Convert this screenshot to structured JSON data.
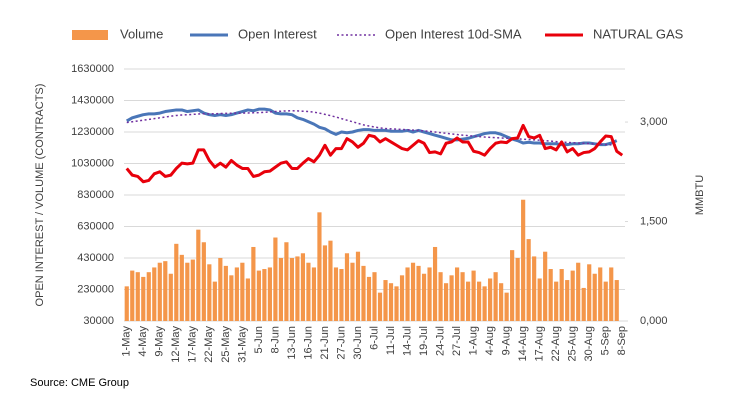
{
  "chart_data": {
    "type": "combo",
    "ylabel": "OPEN INTEREST / VOLUME (CONTRACTS)",
    "y2label": "MMBTU",
    "source": "Source: CME Group",
    "grid": true,
    "legend": "top",
    "ylim": [
      30000,
      1630000
    ],
    "yticks": [
      30000,
      230000,
      430000,
      630000,
      830000,
      1030000,
      1230000,
      1430000,
      1630000
    ],
    "y2lim": [
      0,
      3800
    ],
    "y2ticks": [
      {
        "value": 0,
        "label": "0,000"
      },
      {
        "value": 1500,
        "label": "1,500"
      },
      {
        "value": 3000,
        "label": "3,000"
      }
    ],
    "categories": [
      "1-May",
      null,
      null,
      "4-May",
      null,
      null,
      "9-May",
      null,
      null,
      "12-May",
      null,
      null,
      "17-May",
      null,
      null,
      "22-May",
      null,
      null,
      "25-May",
      null,
      null,
      "31-May",
      null,
      null,
      "5-Jun",
      null,
      null,
      "8-Jun",
      null,
      null,
      "13-Jun",
      null,
      null,
      "16-Jun",
      null,
      null,
      "21-Jun",
      null,
      null,
      "27-Jun",
      null,
      null,
      "30-Jun",
      null,
      null,
      "6-Jul",
      null,
      null,
      "11-Jul",
      null,
      null,
      "14-Jul",
      null,
      null,
      "19-Jul",
      null,
      null,
      "24-Jul",
      null,
      null,
      "27-Jul",
      null,
      null,
      "1-Aug",
      null,
      null,
      "4-Aug",
      null,
      null,
      "9-Aug",
      null,
      null,
      "14-Aug",
      null,
      null,
      "17-Aug",
      null,
      null,
      "22-Aug",
      null,
      null,
      "25-Aug",
      null,
      null,
      "30-Aug",
      null,
      null,
      "5-Sep",
      null,
      null,
      "8-Sep"
    ],
    "series": [
      {
        "name": "Volume",
        "type": "bar",
        "color": "#f4964a",
        "values": [
          250000,
          350000,
          340000,
          310000,
          340000,
          370000,
          400000,
          410000,
          330000,
          520000,
          450000,
          400000,
          420000,
          610000,
          530000,
          390000,
          280000,
          430000,
          380000,
          320000,
          370000,
          400000,
          300000,
          500000,
          350000,
          360000,
          370000,
          560000,
          430000,
          530000,
          430000,
          440000,
          460000,
          400000,
          370000,
          720000,
          510000,
          540000,
          370000,
          360000,
          460000,
          400000,
          470000,
          380000,
          310000,
          340000,
          210000,
          290000,
          270000,
          250000,
          320000,
          370000,
          400000,
          380000,
          330000,
          370000,
          500000,
          340000,
          270000,
          320000,
          370000,
          340000,
          280000,
          350000,
          280000,
          250000,
          300000,
          340000,
          270000,
          210000,
          480000,
          430000,
          800000,
          550000,
          440000,
          300000,
          470000,
          360000,
          280000,
          360000,
          290000,
          350000,
          400000,
          240000,
          390000,
          330000,
          370000,
          280000,
          370000,
          290000,
          null
        ]
      },
      {
        "name": "Open Interest",
        "type": "line",
        "color": "#4a76b8",
        "values": [
          1300000,
          1320000,
          1330000,
          1340000,
          1345000,
          1345000,
          1350000,
          1360000,
          1365000,
          1370000,
          1370000,
          1360000,
          1365000,
          1370000,
          1350000,
          1340000,
          1335000,
          1340000,
          1335000,
          1340000,
          1350000,
          1360000,
          1370000,
          1365000,
          1375000,
          1375000,
          1370000,
          1350000,
          1345000,
          1345000,
          1340000,
          1320000,
          1310000,
          1295000,
          1280000,
          1260000,
          1250000,
          1230000,
          1215000,
          1230000,
          1225000,
          1230000,
          1240000,
          1245000,
          1245000,
          1240000,
          1240000,
          1240000,
          1235000,
          1235000,
          1235000,
          1240000,
          1230000,
          1240000,
          1230000,
          1220000,
          1210000,
          1200000,
          1190000,
          1180000,
          1180000,
          1185000,
          1190000,
          1200000,
          1210000,
          1220000,
          1225000,
          1225000,
          1215000,
          1200000,
          1185000,
          1175000,
          1160000,
          1165000,
          1160000,
          1160000,
          1155000,
          1155000,
          1155000,
          1150000,
          1150000,
          1155000,
          1155000,
          1160000,
          1160000,
          1155000,
          1150000,
          1150000,
          1160000,
          1175000,
          null
        ]
      },
      {
        "name": "Open Interest 10d-SMA",
        "type": "dotted",
        "color": "#7030a0",
        "values": [
          1290000,
          1295000,
          1300000,
          1305000,
          1310000,
          1315000,
          1320000,
          1325000,
          1330000,
          1335000,
          1338000,
          1340000,
          1342000,
          1344000,
          1346000,
          1345000,
          1346000,
          1347000,
          1348000,
          1349000,
          1350000,
          1350000,
          1351000,
          1352000,
          1353000,
          1355000,
          1358000,
          1360000,
          1362000,
          1364000,
          1365000,
          1364000,
          1362000,
          1360000,
          1356000,
          1350000,
          1342000,
          1334000,
          1325000,
          1315000,
          1305000,
          1295000,
          1285000,
          1275000,
          1268000,
          1262000,
          1256000,
          1252000,
          1250000,
          1248000,
          1246000,
          1244000,
          1242000,
          1240000,
          1237000,
          1234000,
          1230000,
          1226000,
          1222000,
          1218000,
          1214000,
          1210000,
          1207000,
          1204000,
          1201000,
          1198000,
          1196000,
          1194000,
          1192000,
          1190000,
          1188000,
          1186000,
          1184000,
          1182000,
          1180000,
          1178000,
          1175000,
          1172000,
          1169000,
          1166000,
          1164000,
          1162000,
          1160000,
          1158000,
          1156000,
          1154000,
          1152000,
          1150000,
          1148000,
          1146000,
          null
        ]
      },
      {
        "name": "NATURAL GAS",
        "type": "line",
        "axis": "y2",
        "color": "#e8000b",
        "values": [
          2300,
          2200,
          2180,
          2100,
          2120,
          2220,
          2250,
          2180,
          2200,
          2300,
          2380,
          2370,
          2380,
          2580,
          2580,
          2420,
          2320,
          2380,
          2320,
          2420,
          2350,
          2300,
          2300,
          2180,
          2200,
          2250,
          2260,
          2320,
          2380,
          2400,
          2300,
          2300,
          2380,
          2450,
          2400,
          2500,
          2650,
          2500,
          2600,
          2600,
          2750,
          2700,
          2620,
          2680,
          2800,
          2780,
          2700,
          2750,
          2700,
          2650,
          2600,
          2580,
          2650,
          2720,
          2680,
          2540,
          2550,
          2520,
          2680,
          2700,
          2760,
          2700,
          2700,
          2560,
          2540,
          2500,
          2600,
          2680,
          2700,
          2690,
          2750,
          2760,
          2950,
          2780,
          2760,
          2800,
          2600,
          2620,
          2580,
          2700,
          2550,
          2600,
          2500,
          2540,
          2550,
          2600,
          2700,
          2790,
          2780,
          2560,
          2500
        ]
      }
    ]
  }
}
